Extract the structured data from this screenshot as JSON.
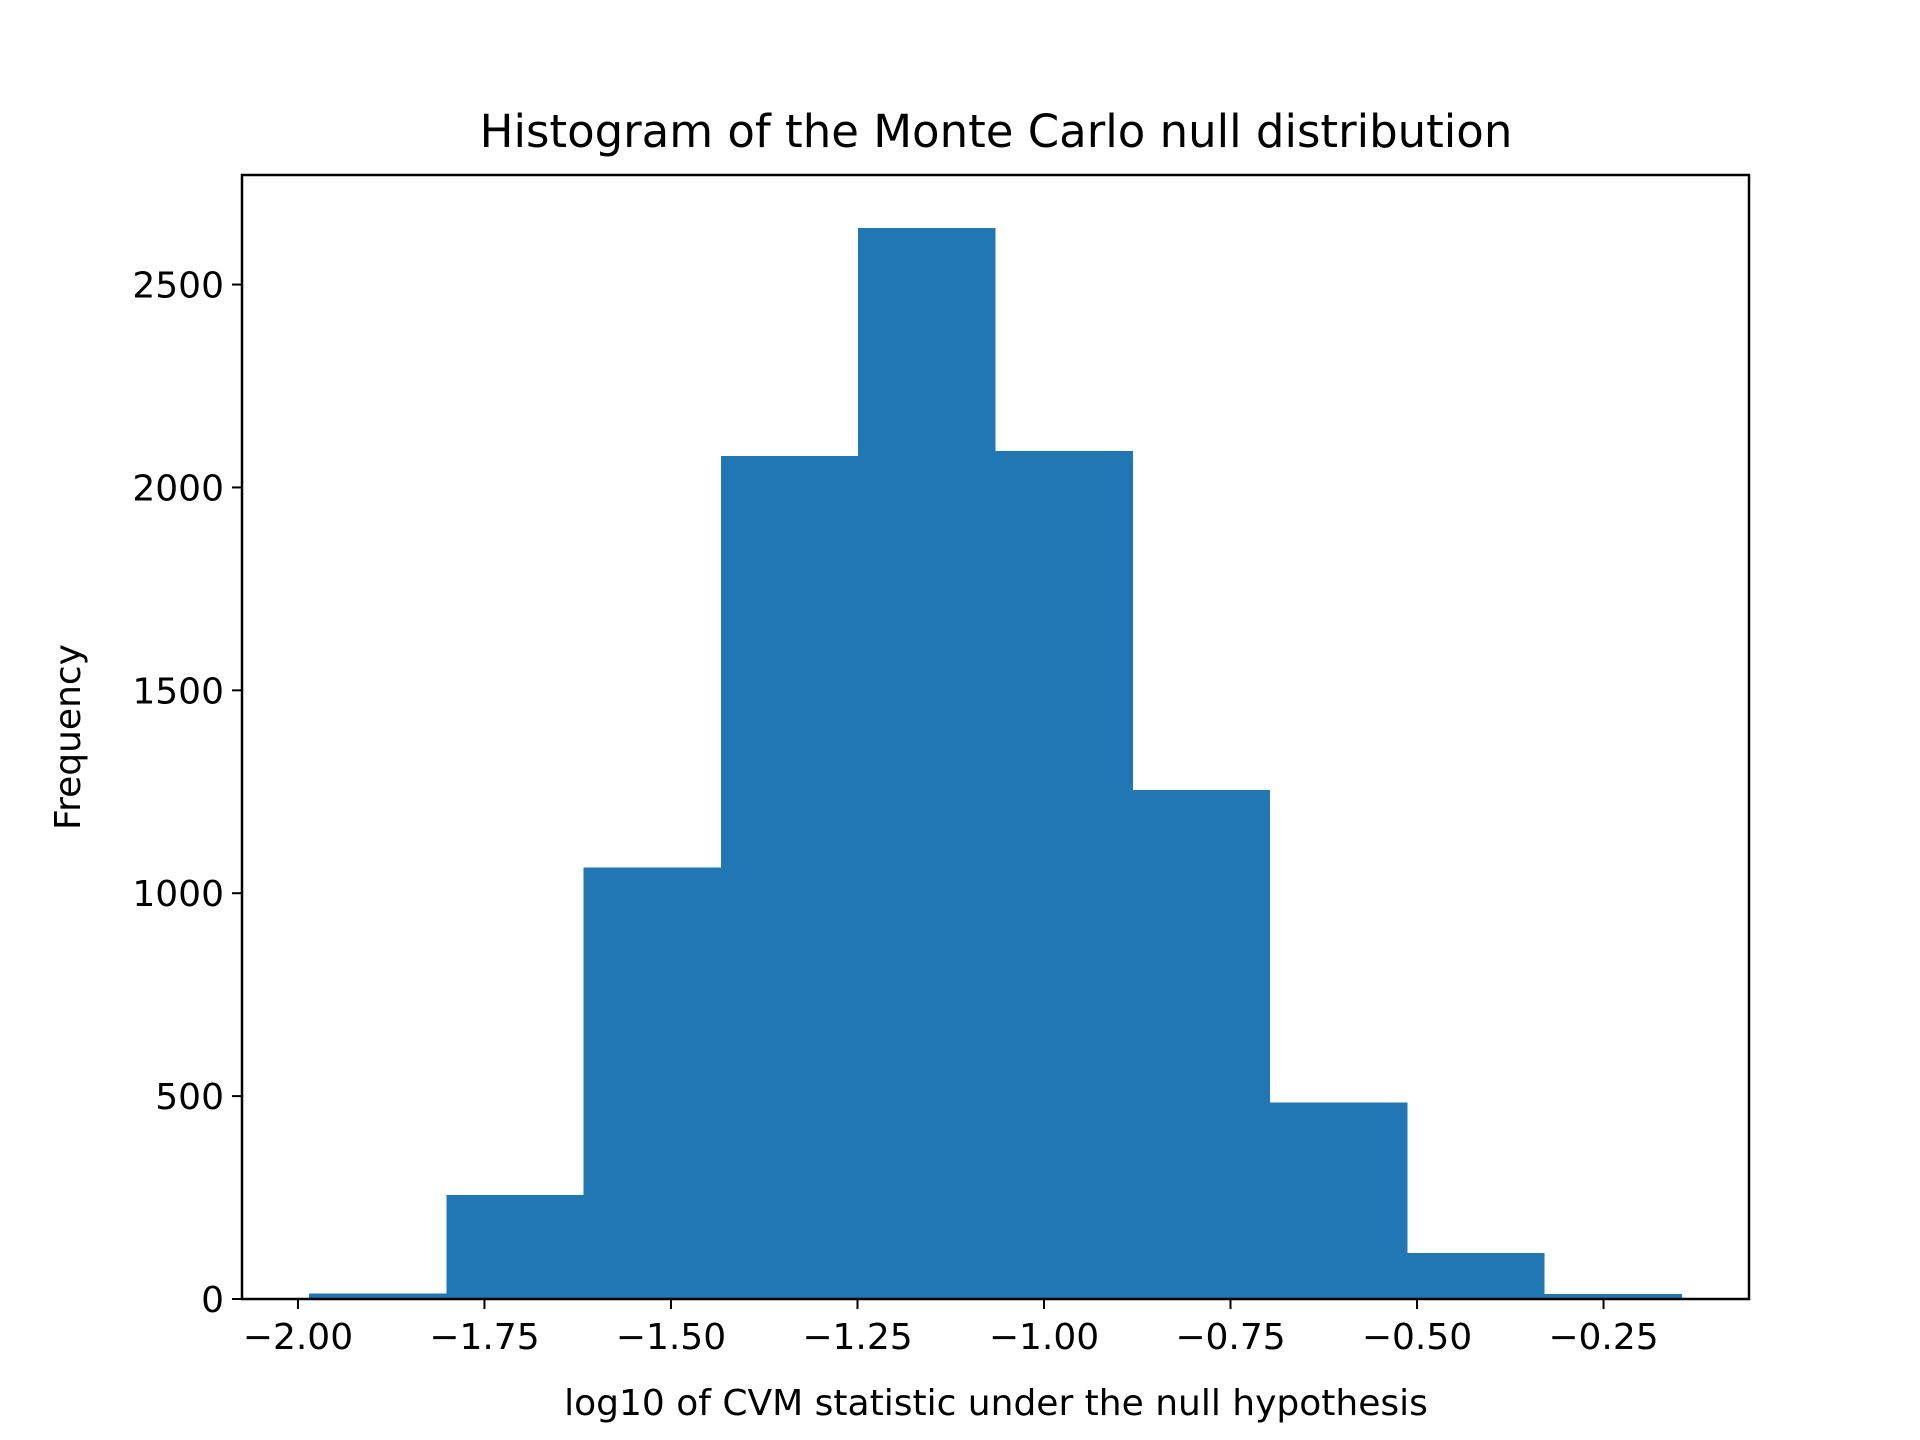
{
  "chart_data": {
    "type": "bar",
    "title": "Histogram of the Monte Carlo null distribution",
    "xlabel": "log10 of CVM statistic under the null hypothesis",
    "ylabel": "Frequency",
    "xlim": [
      -2.075,
      -0.055
    ],
    "ylim": [
      0,
      2770
    ],
    "grid": false,
    "bar_color": "#2077b4",
    "bins": [
      {
        "x0": -1.985,
        "x1": -1.801,
        "count": 14
      },
      {
        "x0": -1.801,
        "x1": -1.617,
        "count": 256
      },
      {
        "x0": -1.617,
        "x1": -1.433,
        "count": 1064
      },
      {
        "x0": -1.433,
        "x1": -1.249,
        "count": 2078
      },
      {
        "x0": -1.249,
        "x1": -1.065,
        "count": 2640
      },
      {
        "x0": -1.065,
        "x1": -0.881,
        "count": 2090
      },
      {
        "x0": -0.881,
        "x1": -0.697,
        "count": 1254
      },
      {
        "x0": -0.697,
        "x1": -0.513,
        "count": 484
      },
      {
        "x0": -0.513,
        "x1": -0.329,
        "count": 113
      },
      {
        "x0": -0.329,
        "x1": -0.145,
        "count": 12
      }
    ],
    "x_ticks": [
      {
        "value": -2.0,
        "label": "−2.00"
      },
      {
        "value": -1.75,
        "label": "−1.75"
      },
      {
        "value": -1.5,
        "label": "−1.50"
      },
      {
        "value": -1.25,
        "label": "−1.25"
      },
      {
        "value": -1.0,
        "label": "−1.00"
      },
      {
        "value": -0.75,
        "label": "−0.75"
      },
      {
        "value": -0.5,
        "label": "−0.50"
      },
      {
        "value": -0.25,
        "label": "−0.25"
      }
    ],
    "y_ticks": [
      {
        "value": 0,
        "label": "0"
      },
      {
        "value": 500,
        "label": "500"
      },
      {
        "value": 1000,
        "label": "1000"
      },
      {
        "value": 1500,
        "label": "1500"
      },
      {
        "value": 2000,
        "label": "2000"
      },
      {
        "value": 2500,
        "label": "2500"
      }
    ]
  }
}
